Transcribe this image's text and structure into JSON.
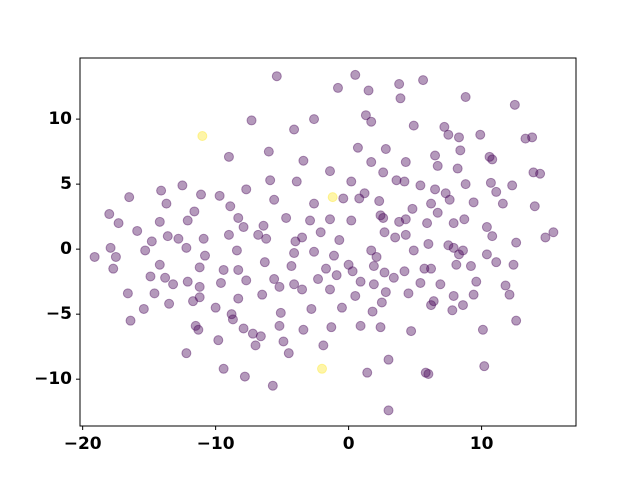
{
  "chart_data": {
    "type": "scatter",
    "xlim": [
      -20.2,
      17.1
    ],
    "ylim": [
      -13.6,
      14.7
    ],
    "xticks": [
      {
        "value": -20,
        "label": "−20"
      },
      {
        "value": -10,
        "label": "−10"
      },
      0,
      10
    ],
    "yticks": [
      {
        "value": -10,
        "label": "−10"
      },
      {
        "value": -5,
        "label": "−5"
      },
      0,
      5,
      10
    ],
    "alpha": 0.4,
    "grid": false,
    "series": [
      {
        "color": "#440154",
        "x": [
          -5.4,
          0.5,
          -0.8,
          1.5,
          3.8,
          5.6,
          3.9,
          8.8,
          12.5,
          -7.3,
          -2.6,
          1.3,
          1.7,
          4.9,
          7.2,
          -4.1,
          7.5,
          8.3,
          9.9,
          13.3,
          13.8,
          -9,
          -6,
          -3.4,
          0.7,
          1.7,
          2.8,
          4.3,
          6.5,
          8.4,
          10.6,
          10.8,
          6.7,
          8.2,
          2.6,
          -1.4,
          -12.5,
          -14.1,
          -11.1,
          -9.7,
          -7.7,
          -5.9,
          -3.9,
          0.2,
          1.2,
          3.6,
          4.2,
          5.4,
          6.5,
          7.3,
          8.8,
          10.7,
          11.1,
          12.3,
          13.9,
          14.4,
          -16.5,
          -13.7,
          -11.6,
          -8.9,
          -5.6,
          -2.6,
          -0.4,
          0.8,
          2.3,
          4.8,
          6.2,
          7.6,
          9.4,
          11.6,
          -18,
          -17.3,
          -14.2,
          -12.1,
          -8.3,
          -7.9,
          -6.4,
          -4.7,
          -2.9,
          -1.4,
          0.2,
          2.4,
          2.6,
          3.8,
          4.3,
          5.9,
          6.7,
          7.9,
          8.7,
          10.4,
          14,
          -15.9,
          -14.8,
          -13.6,
          -12.8,
          -10.9,
          -9,
          -6.8,
          -6.2,
          -4,
          -3.5,
          -2.1,
          -0.7,
          2.7,
          3.5,
          4.3,
          6,
          7.5,
          8.6,
          10.8,
          12.6,
          14.8,
          15.4,
          -17.9,
          -17.5,
          -19.1,
          -15.3,
          -12.2,
          -10.8,
          -8.4,
          -4.1,
          -2.6,
          -1.1,
          1.7,
          2.1,
          4.9,
          7.9,
          8.3,
          10.4,
          -17.7,
          -14.2,
          -13.8,
          -11.2,
          -9.4,
          -8.3,
          -6.3,
          -4.3,
          -1.7,
          0,
          0.3,
          1.9,
          2.7,
          4.2,
          5.7,
          6.2,
          8.1,
          9.2,
          11.1,
          12.4,
          -14.9,
          -13.2,
          -12.1,
          -11.2,
          -9.6,
          -7.7,
          -5.6,
          -4.1,
          -2.3,
          -0.9,
          0.9,
          1.9,
          3.4,
          5.4,
          6.9,
          9.6,
          11.8,
          -16.6,
          -14.6,
          -11.2,
          -8.3,
          -6.5,
          -5.2,
          -3.5,
          -1.4,
          0.5,
          2.8,
          4.5,
          6.4,
          7.9,
          9.4,
          12.1,
          -15.4,
          -13.5,
          -11.7,
          -10,
          -8.8,
          -5.1,
          -2.8,
          -0.5,
          1.8,
          2.5,
          6.2,
          7.8,
          8.6,
          -16.4,
          -11.5,
          -8.7,
          -7.9,
          -5.2,
          -3.4,
          -1.3,
          0.9,
          2.4,
          4.7,
          10.1,
          12.6,
          -11.3,
          -7.2,
          -6.6,
          -4.9,
          -12.2,
          -9.8,
          -7,
          -4.5,
          -1.9,
          3,
          5.8,
          6,
          -7.8,
          -9.4,
          1.4,
          10.2,
          -5.7,
          3
        ],
        "y": [
          13.3,
          13.4,
          12.4,
          12.2,
          12.7,
          13,
          11.6,
          11.7,
          11.1,
          9.9,
          10,
          10.3,
          9.8,
          9.5,
          9.4,
          9.2,
          8.8,
          8.6,
          8.8,
          8.5,
          8.6,
          7.1,
          7.5,
          6.8,
          7.8,
          6.7,
          7.7,
          6.7,
          7.2,
          7.6,
          7.1,
          6.9,
          6.4,
          6.2,
          5.9,
          6,
          4.9,
          4.5,
          4.2,
          4.1,
          4.6,
          5.3,
          5.2,
          5.2,
          4.3,
          5.3,
          5.2,
          4.9,
          4.6,
          4.3,
          5,
          5.1,
          4.4,
          4.9,
          5.9,
          5.8,
          4,
          3.5,
          2.9,
          3.3,
          3.8,
          3.5,
          3.9,
          3.9,
          3.7,
          3.1,
          3.5,
          3.8,
          3.6,
          3.5,
          2.7,
          2,
          2.1,
          2.2,
          2.4,
          1.7,
          1.8,
          2.4,
          2.2,
          2.3,
          2.2,
          2.6,
          2.4,
          2.1,
          2.3,
          2,
          2.8,
          2,
          2.3,
          1.7,
          3.3,
          1.4,
          0.6,
          1,
          0.8,
          0.8,
          1.1,
          1.1,
          0.8,
          0.6,
          0.9,
          1.3,
          0.7,
          1.3,
          0.9,
          1.1,
          0.4,
          0.3,
          -0.1,
          1,
          0.5,
          0.9,
          1.3,
          0.1,
          -0.6,
          -0.6,
          -0.1,
          0.1,
          -0.5,
          -0.1,
          -0.3,
          -0.2,
          -0.5,
          -0.1,
          -0.6,
          -0.1,
          0.1,
          -0.4,
          -0.4,
          -1.5,
          -1.2,
          -2.2,
          -1.4,
          -1.6,
          -1.6,
          -1,
          -1.3,
          -1.5,
          -1.2,
          -1.7,
          -1.3,
          -1.8,
          -1.7,
          -1.5,
          -1.5,
          -1.2,
          -1.3,
          -1,
          -1.2,
          -2.1,
          -2.7,
          -2.5,
          -2.9,
          -2.6,
          -2.4,
          -2.3,
          -2.7,
          -2.3,
          -2,
          -2.5,
          -2.7,
          -2.2,
          -2.6,
          -2.7,
          -2.5,
          -2.8,
          -3.4,
          -3.4,
          -3.7,
          -3.8,
          -3.5,
          -2.9,
          -3.1,
          -3.1,
          -3.6,
          -3.3,
          -3.4,
          -4,
          -3.6,
          -3.5,
          -3.5,
          -4.6,
          -4.2,
          -4,
          -4.5,
          -5,
          -4.9,
          -4.6,
          -4.5,
          -4.8,
          -4.1,
          -4.3,
          -4.7,
          -4.3,
          -5.5,
          -5.9,
          -5.4,
          -6.1,
          -5.9,
          -6.2,
          -6,
          -5.9,
          -6,
          -6.3,
          -6.2,
          -5.5,
          -6.2,
          -6.5,
          -6.7,
          -7.1,
          -8,
          -7,
          -7.4,
          -8,
          -7.4,
          -8.5,
          -9.5,
          -9.6,
          -9.8,
          -9.2,
          -9.5,
          -9,
          -10.5,
          -12.4
        ]
      },
      {
        "color": "#fde725",
        "x": [
          -11,
          -1.2,
          -2
        ],
        "y": [
          8.7,
          4,
          -9.2
        ]
      }
    ]
  }
}
